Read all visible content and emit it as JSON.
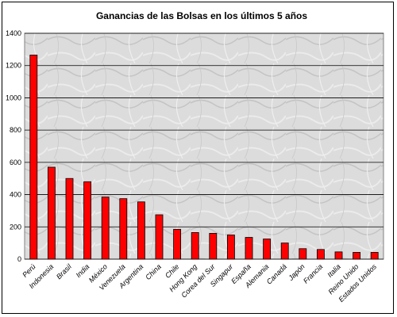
{
  "chart_data": {
    "type": "bar",
    "title": "Ganancias de las Bolsas en los últimos 5 años",
    "xlabel": "",
    "ylabel": "",
    "categories": [
      "Perú",
      "Indonesia",
      "Brasil",
      "India",
      "México",
      "Venezuela",
      "Argentina",
      "China",
      "Chile",
      "Hong Kong",
      "Corea del Sur",
      "Singapur",
      "España",
      "Alemania",
      "Canadá",
      "Japón",
      "Francia",
      "Italia",
      "Reino Unido",
      "Estados Unidos"
    ],
    "values": [
      1265,
      570,
      500,
      480,
      385,
      375,
      355,
      275,
      185,
      165,
      160,
      150,
      135,
      125,
      100,
      65,
      60,
      45,
      42,
      42
    ],
    "ylim": [
      0,
      1400
    ],
    "yticks": [
      "0",
      "200",
      "400",
      "600",
      "800",
      "1000",
      "1200",
      "1400"
    ],
    "grid": true,
    "legend": "none",
    "colors": {
      "bar": "#ff0000",
      "bar_edge": "#000000",
      "plot_background": "#d9d9d9",
      "gridline": "#000000"
    }
  }
}
